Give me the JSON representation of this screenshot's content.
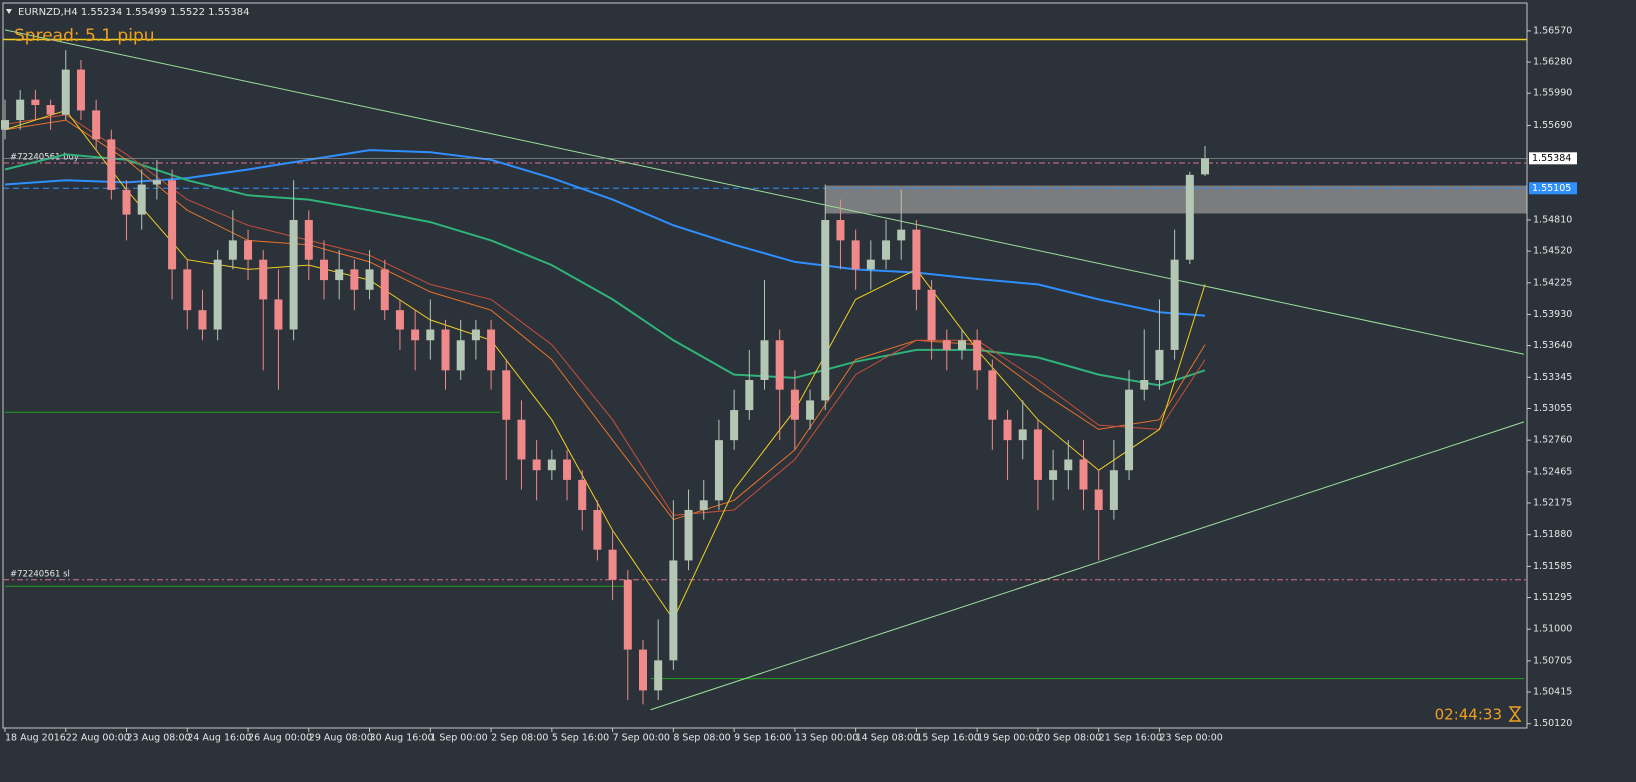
{
  "chart_data": {
    "type": "candlestick",
    "title": "EURNZD,H4",
    "spread": "Spread: 5.1 pipu",
    "timer": "02:44:33",
    "categories": [
      "18 Aug 2016",
      null,
      null,
      null,
      "22 Aug 00:00",
      null,
      null,
      null,
      "23 Aug 08:00",
      null,
      null,
      null,
      "24 Aug 16:00",
      null,
      null,
      null,
      "26 Aug 00:00",
      null,
      null,
      null,
      "29 Aug 08:00",
      null,
      null,
      null,
      "30 Aug 16:00",
      null,
      null,
      null,
      "1 Sep 00:00",
      null,
      null,
      null,
      "2 Sep 08:00",
      null,
      null,
      null,
      "5 Sep 16:00",
      null,
      null,
      null,
      "7 Sep 00:00",
      null,
      null,
      null,
      "8 Sep 08:00",
      null,
      null,
      null,
      "9 Sep 16:00",
      null,
      null,
      null,
      "13 Sep 00:00",
      null,
      null,
      null,
      "14 Sep 08:00",
      null,
      null,
      null,
      "15 Sep 16:00",
      null,
      null,
      null,
      "19 Sep 00:00",
      null,
      null,
      null,
      "20 Sep 08:00",
      null,
      null,
      null,
      "21 Sep 16:00",
      null,
      null,
      null,
      "23 Sep 00:00",
      null,
      null,
      null
    ],
    "open": [
      1.5565,
      1.5574,
      1.5593,
      1.5588,
      1.5579,
      1.5621,
      1.5583,
      1.5556,
      1.5509,
      1.5486,
      1.5514,
      1.5518,
      1.5435,
      1.5397,
      1.5379,
      1.5444,
      1.5462,
      1.5444,
      1.5407,
      1.5379,
      1.5481,
      1.5444,
      1.5425,
      1.5435,
      1.5416,
      1.5435,
      1.5397,
      1.5379,
      1.5369,
      1.5379,
      1.5341,
      1.5369,
      1.5379,
      1.5341,
      1.5295,
      1.5258,
      1.5248,
      1.5258,
      1.5239,
      1.5211,
      1.5174,
      1.5146,
      1.5081,
      1.5043,
      1.5071,
      1.5164,
      1.5211,
      1.522,
      1.5276,
      1.5304,
      1.5332,
      1.5369,
      1.5323,
      1.5295,
      1.5313,
      1.5481,
      1.5462,
      1.5435,
      1.5444,
      1.5462,
      1.5472,
      1.5416,
      1.5369,
      1.536,
      1.5369,
      1.5341,
      1.5295,
      1.5276,
      1.5286,
      1.5239,
      1.5248,
      1.5258,
      1.523,
      1.5211,
      1.5248,
      1.5323,
      1.5332,
      1.536,
      1.5444,
      1.55234
    ],
    "high": [
      1.5593,
      1.5602,
      1.5602,
      1.5593,
      1.5639,
      1.563,
      1.5593,
      1.5565,
      1.5518,
      1.5528,
      1.5537,
      1.5528,
      1.5444,
      1.5416,
      1.5453,
      1.549,
      1.5472,
      1.5453,
      1.5435,
      1.5518,
      1.549,
      1.5462,
      1.5453,
      1.5444,
      1.5453,
      1.5444,
      1.5407,
      1.5397,
      1.5407,
      1.5388,
      1.5388,
      1.5388,
      1.5388,
      1.5351,
      1.5313,
      1.5276,
      1.5267,
      1.5267,
      1.5248,
      1.522,
      1.5192,
      1.5155,
      1.509,
      1.5109,
      1.522,
      1.523,
      1.5239,
      1.5295,
      1.5323,
      1.536,
      1.5425,
      1.5379,
      1.5341,
      1.5323,
      1.5514,
      1.55,
      1.5472,
      1.5462,
      1.5481,
      1.5509,
      1.5481,
      1.5425,
      1.5379,
      1.5379,
      1.5379,
      1.5351,
      1.5304,
      1.5313,
      1.5295,
      1.5267,
      1.5276,
      1.5276,
      1.5248,
      1.5276,
      1.5341,
      1.5379,
      1.5407,
      1.5472,
      1.5526,
      1.55499
    ],
    "low": [
      1.5556,
      1.5565,
      1.5574,
      1.5565,
      1.5574,
      1.5574,
      1.5546,
      1.55,
      1.5462,
      1.5472,
      1.55,
      1.5407,
      1.5379,
      1.5369,
      1.5369,
      1.5435,
      1.5425,
      1.5341,
      1.5323,
      1.5369,
      1.5425,
      1.5407,
      1.5407,
      1.5397,
      1.5407,
      1.5388,
      1.536,
      1.5341,
      1.5351,
      1.5323,
      1.5332,
      1.5351,
      1.5323,
      1.5239,
      1.523,
      1.522,
      1.5239,
      1.522,
      1.5192,
      1.5164,
      1.5127,
      1.5034,
      1.503,
      1.5034,
      1.5062,
      1.5155,
      1.5202,
      1.5211,
      1.5267,
      1.5295,
      1.5323,
      1.5276,
      1.5267,
      1.5286,
      1.5304,
      1.5435,
      1.5416,
      1.5416,
      1.5435,
      1.5444,
      1.5397,
      1.5351,
      1.5341,
      1.5351,
      1.5323,
      1.5267,
      1.5239,
      1.5258,
      1.5211,
      1.522,
      1.523,
      1.5211,
      1.5164,
      1.5202,
      1.5239,
      1.5313,
      1.5323,
      1.5351,
      1.544,
      1.5522
    ],
    "close": [
      1.5574,
      1.5593,
      1.5588,
      1.5579,
      1.5621,
      1.5583,
      1.5556,
      1.5509,
      1.5486,
      1.5514,
      1.5518,
      1.5435,
      1.5397,
      1.5379,
      1.5444,
      1.5462,
      1.5444,
      1.5407,
      1.5379,
      1.5481,
      1.5444,
      1.5425,
      1.5435,
      1.5416,
      1.5435,
      1.5397,
      1.5379,
      1.5369,
      1.5379,
      1.5341,
      1.5369,
      1.5379,
      1.5341,
      1.5295,
      1.5258,
      1.5248,
      1.5258,
      1.5239,
      1.5211,
      1.5174,
      1.5146,
      1.5081,
      1.5043,
      1.5071,
      1.5164,
      1.5211,
      1.522,
      1.5276,
      1.5304,
      1.5332,
      1.5369,
      1.5323,
      1.5295,
      1.5313,
      1.5481,
      1.5462,
      1.5435,
      1.5444,
      1.5462,
      1.5472,
      1.5416,
      1.5369,
      1.536,
      1.5369,
      1.5341,
      1.5295,
      1.5276,
      1.5286,
      1.5239,
      1.5248,
      1.5258,
      1.523,
      1.5211,
      1.5248,
      1.5323,
      1.5332,
      1.536,
      1.5444,
      1.5523,
      1.55384
    ],
    "up_color": "#b4c6b4",
    "down_color": "#f08a8a",
    "xlim": [
      0,
      100
    ],
    "ylim": [
      1.5008,
      1.5683
    ],
    "yticks": [
      {
        "value": 1.5657,
        "label": "1.56570"
      },
      {
        "value": 1.5628,
        "label": "1.56280"
      },
      {
        "value": 1.5599,
        "label": "1.55990"
      },
      {
        "value": 1.5569,
        "label": "1.55690"
      },
      {
        "value": 1.5481,
        "label": "1.54810"
      },
      {
        "value": 1.5452,
        "label": "1.54520"
      },
      1.54225,
      {
        "value": 1.5393,
        "label": "1.53930"
      },
      {
        "value": 1.5364,
        "label": "1.53640"
      },
      1.53345,
      1.53055,
      {
        "value": 1.5276,
        "label": "1.52760"
      },
      1.52465,
      1.52175,
      {
        "value": 1.5188,
        "label": "1.51880"
      },
      1.51585,
      1.51295,
      {
        "value": 1.51,
        "label": "1.51000"
      },
      1.50705,
      1.50415,
      {
        "value": 1.5012,
        "label": "1.50120"
      }
    ],
    "series": [
      {
        "color": "#2f8fff",
        "width": 2,
        "x": [
          0,
          4,
          8,
          12,
          16,
          20,
          24,
          28,
          32,
          36,
          40,
          44,
          48,
          52,
          56,
          60,
          64,
          68,
          72,
          76,
          79
        ],
        "values": [
          1.5514,
          1.5518,
          1.5516,
          1.552,
          1.5528,
          1.5537,
          1.5546,
          1.5544,
          1.5537,
          1.552,
          1.55,
          1.5476,
          1.5458,
          1.5442,
          1.5435,
          1.5432,
          1.5426,
          1.5421,
          1.5407,
          1.5395,
          1.5392
        ]
      },
      {
        "color": "#2fb37a",
        "width": 2,
        "x": [
          0,
          4,
          8,
          12,
          16,
          20,
          24,
          28,
          32,
          36,
          40,
          44,
          48,
          52,
          56,
          60,
          64,
          68,
          72,
          76,
          79
        ],
        "values": [
          1.5528,
          1.5542,
          1.5537,
          1.5518,
          1.5504,
          1.55,
          1.549,
          1.5479,
          1.5462,
          1.5439,
          1.5407,
          1.5369,
          1.5337,
          1.5334,
          1.5349,
          1.536,
          1.536,
          1.5353,
          1.5337,
          1.5327,
          1.5341
        ]
      },
      {
        "color": "#e8722a",
        "width": 1,
        "x": [
          0,
          4,
          8,
          12,
          16,
          20,
          24,
          28,
          32,
          36,
          40,
          44,
          48,
          52,
          56,
          60,
          64,
          68,
          72,
          76,
          79
        ],
        "values": [
          1.5565,
          1.5574,
          1.5537,
          1.549,
          1.5462,
          1.5458,
          1.5442,
          1.5414,
          1.5397,
          1.5351,
          1.5276,
          1.5202,
          1.522,
          1.5267,
          1.5351,
          1.5369,
          1.5365,
          1.5323,
          1.5286,
          1.5295,
          1.5365
        ]
      },
      {
        "color": "#c8503a",
        "width": 1,
        "x": [
          0,
          4,
          8,
          12,
          16,
          20,
          24,
          28,
          32,
          36,
          40,
          44,
          48,
          52,
          56,
          60,
          64,
          68,
          72,
          76,
          79
        ],
        "values": [
          1.557,
          1.5579,
          1.5542,
          1.55,
          1.5476,
          1.5462,
          1.5448,
          1.5421,
          1.5407,
          1.5365,
          1.5295,
          1.5206,
          1.5211,
          1.5258,
          1.5337,
          1.5369,
          1.5369,
          1.5332,
          1.529,
          1.5286,
          1.5351
        ]
      },
      {
        "color": "#f0d020",
        "width": 1,
        "x": [
          0,
          4,
          8,
          12,
          16,
          20,
          24,
          28,
          32,
          36,
          40,
          44,
          48,
          52,
          56,
          60,
          64,
          68,
          72,
          76,
          79
        ],
        "values": [
          1.5565,
          1.5583,
          1.5509,
          1.5444,
          1.5435,
          1.5439,
          1.5425,
          1.5388,
          1.5369,
          1.5295,
          1.5192,
          1.5109,
          1.523,
          1.5304,
          1.5407,
          1.5435,
          1.536,
          1.5295,
          1.5248,
          1.5286,
          1.5421
        ]
      }
    ],
    "levels": [
      {
        "value": 1.5649,
        "color": "#f0d020",
        "style": "solid"
      },
      {
        "value": 1.5534,
        "color": "#e0708a",
        "style": "dashdot",
        "label": "#72240561 buy"
      },
      {
        "value": 1.55105,
        "color": "#2f8fff",
        "style": "dash",
        "axis_label": true
      },
      {
        "value": 1.5146,
        "color": "#e0708a",
        "style": "dashdot",
        "label": "#72240561 sl"
      }
    ],
    "segments": [
      {
        "x": [
          0,
          32.6
        ],
        "values": [
          1.5302,
          1.5302
        ],
        "color": "#1fa01f"
      },
      {
        "x": [
          0,
          41.2
        ],
        "values": [
          1.514,
          1.514
        ],
        "color": "#1fa01f"
      },
      {
        "x": [
          42.5,
          100
        ],
        "values": [
          1.5054,
          1.5054
        ],
        "color": "#1fa01f"
      },
      {
        "x": [
          0,
          100
        ],
        "values": [
          1.5658,
          1.5356
        ],
        "color": "#9be09b"
      },
      {
        "x": [
          42.5,
          100
        ],
        "values": [
          1.5025,
          1.5293
        ],
        "color": "#9be09b"
      }
    ],
    "zone": {
      "x": [
        54,
        100
      ],
      "values": [
        1.5487,
        1.5513
      ],
      "color": "#8a8a8a"
    }
  }
}
